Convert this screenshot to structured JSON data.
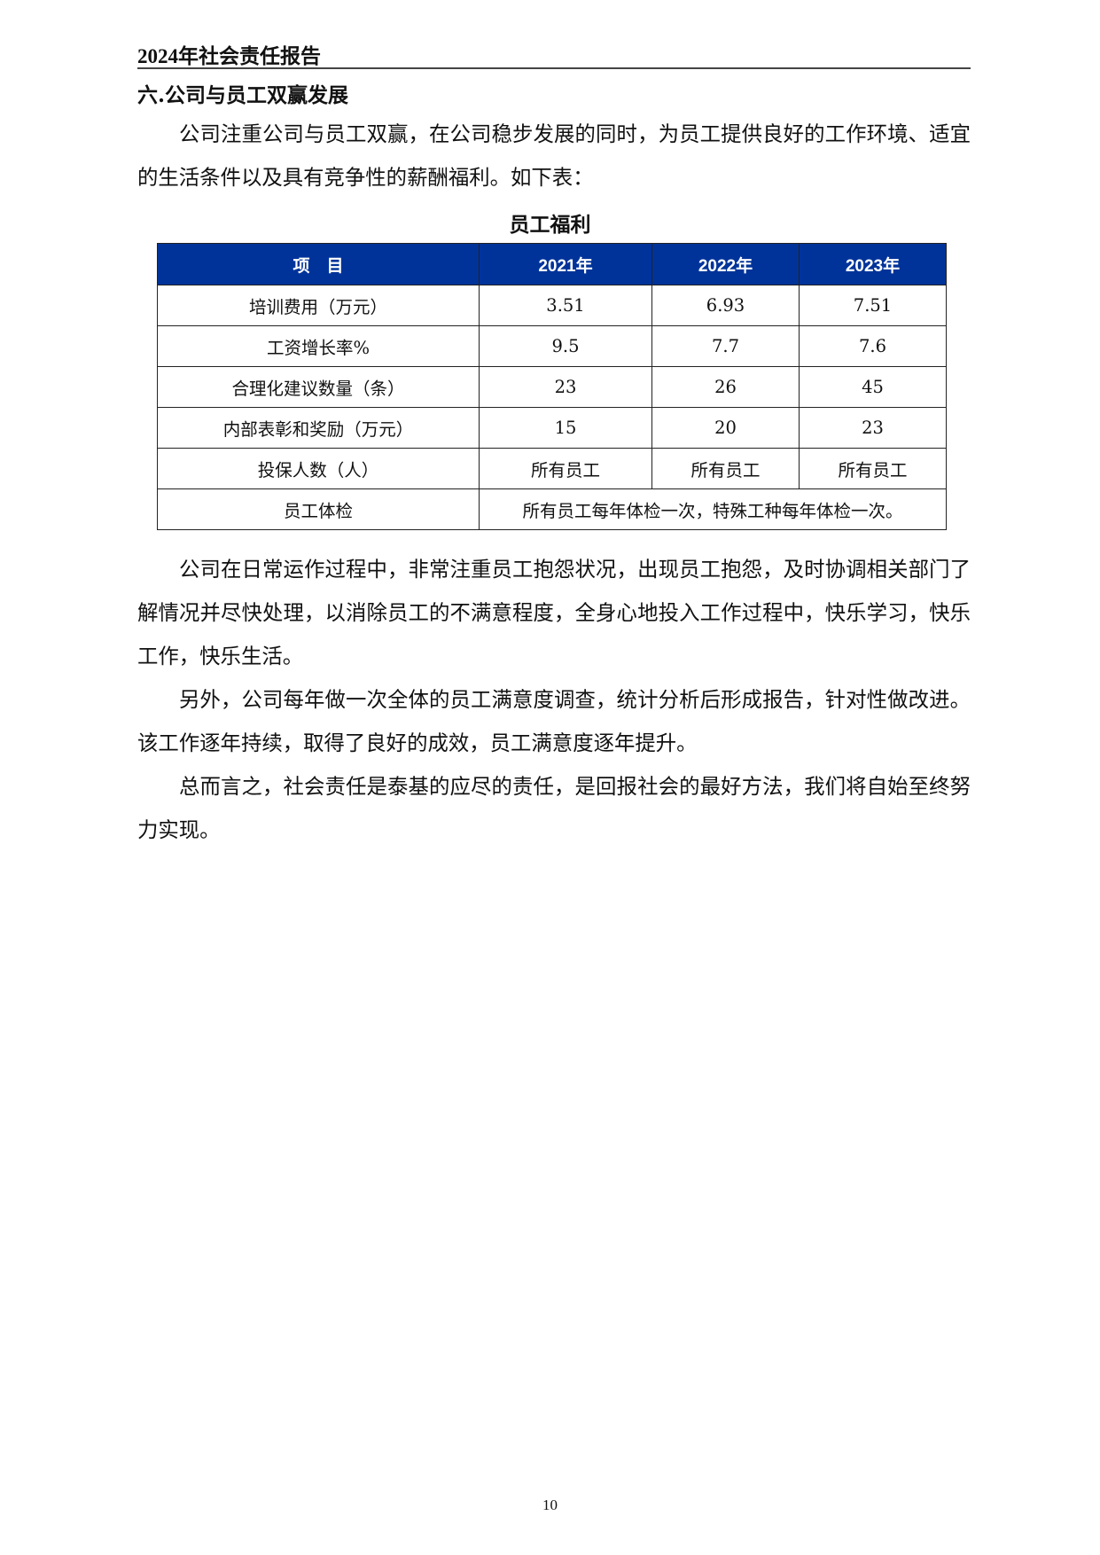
{
  "header": {
    "title": "2024年社会责任报告"
  },
  "section": {
    "title": "六.公司与员工双赢发展"
  },
  "paragraphs": [
    "公司注重公司与员工双赢，在公司稳步发展的同时，为员工提供良好的工作环境、适宜的生活条件以及具有竞争性的薪酬福利。如下表：",
    "公司在日常运作过程中，非常注重员工抱怨状况，出现员工抱怨，及时协调相关部门了解情况并尽快处理，以消除员工的不满意程度，全身心地投入工作过程中，快乐学习，快乐工作，快乐生活。",
    "另外，公司每年做一次全体的员工满意度调查，统计分析后形成报告，针对性做改进。该工作逐年持续，取得了良好的成效，员工满意度逐年提升。",
    "总而言之，社会责任是泰基的应尽的责任，是回报社会的最好方法，我们将自始至终努力实现。"
  ],
  "table": {
    "title": "员工福利",
    "header_color": "#003399",
    "columns": [
      "项　目",
      "2021年",
      "2022年",
      "2023年"
    ],
    "rows": [
      [
        "培训费用（万元）",
        "3.51",
        "6.93",
        "7.51"
      ],
      [
        "工资增长率%",
        "9.5",
        "7.7",
        "7.6"
      ],
      [
        "合理化建议数量（条）",
        "23",
        "26",
        "45"
      ],
      [
        "内部表彰和奖励（万元）",
        "15",
        "20",
        "23"
      ],
      [
        "投保人数（人）",
        "所有员工",
        "所有员工",
        "所有员工"
      ]
    ],
    "last_row": {
      "label": "员工体检",
      "value": "所有员工每年体检一次，特殊工种每年体检一次。"
    }
  },
  "footer": {
    "page_number": "10"
  }
}
